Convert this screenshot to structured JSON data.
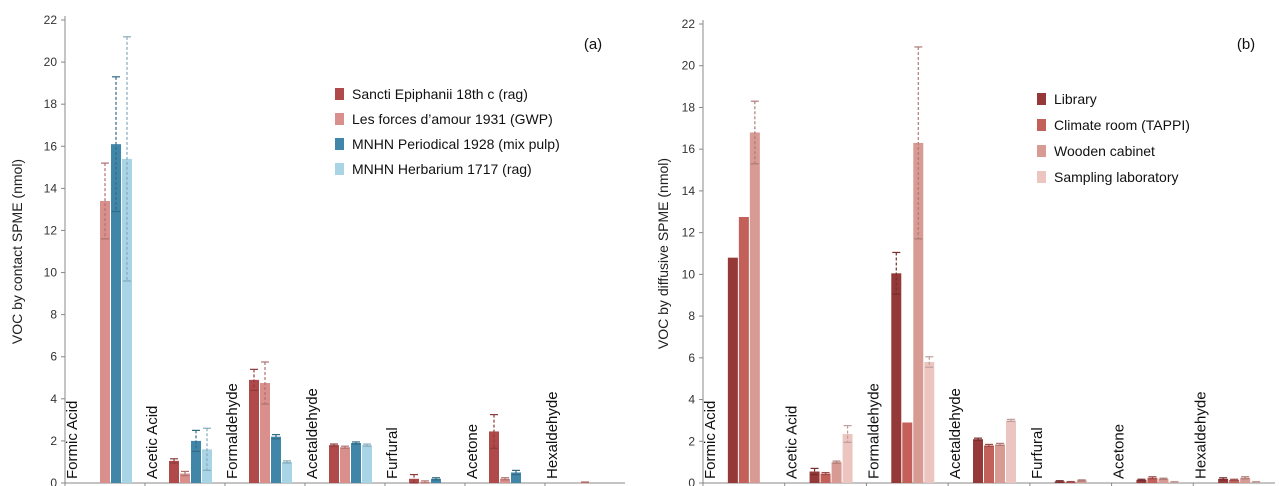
{
  "chart_data": [
    {
      "type": "bar",
      "panel_label": "(a)",
      "ylabel": "VOC by contact SPME (nmol)",
      "ylim": [
        0,
        22
      ],
      "yticks": [
        0,
        2,
        4,
        6,
        8,
        10,
        12,
        14,
        16,
        18,
        20,
        22
      ],
      "categories": [
        "Formic Acid",
        "Acetic Acid",
        "Formaldehyde",
        "Acetaldehyde",
        "Furfural",
        "Acetone",
        "Hexaldehyde"
      ],
      "legend_position": "top-right",
      "series": [
        {
          "name": "Sancti Epiphanii 18th c (rag)",
          "color": "#b04a4a",
          "values": [
            0,
            1.05,
            4.9,
            1.8,
            0.2,
            2.45,
            0.0
          ],
          "errors": [
            0,
            0.1,
            0.5,
            0.05,
            0.2,
            0.8,
            0
          ]
        },
        {
          "name": "Les forces d’amour 1931 (GWP)",
          "color": "#d9908c",
          "values": [
            13.4,
            0.45,
            4.75,
            1.7,
            0.05,
            0.2,
            0.03
          ],
          "errors": [
            1.8,
            0.1,
            1.0,
            0.05,
            0.05,
            0.05,
            0.02
          ]
        },
        {
          "name": "MNHN Periodical 1928 (mix pulp)",
          "color": "#3f86a8",
          "values": [
            16.1,
            2.0,
            2.2,
            1.9,
            0.2,
            0.5,
            0.0
          ],
          "errors": [
            3.2,
            0.5,
            0.1,
            0.05,
            0.05,
            0.1,
            0
          ]
        },
        {
          "name": "MNHN Herbarium 1717 (rag)",
          "color": "#a8d4e6",
          "values": [
            15.4,
            1.6,
            1.0,
            1.8,
            0.0,
            0.0,
            0.0
          ],
          "errors": [
            5.8,
            1.0,
            0.05,
            0.05,
            0,
            0,
            0
          ]
        }
      ]
    },
    {
      "type": "bar",
      "panel_label": "(b)",
      "ylabel": "VOC by diffusive SPME (nmol)",
      "ylim": [
        0,
        22
      ],
      "yticks": [
        0,
        2,
        4,
        6,
        8,
        10,
        12,
        14,
        16,
        18,
        20,
        22
      ],
      "categories": [
        "Formic Acid",
        "Acetic Acid",
        "Formaldehyde",
        "Acetaldehyde",
        "Furfural",
        "Acetone",
        "Hexaldehyde"
      ],
      "legend_position": "top-right",
      "series": [
        {
          "name": "Library",
          "color": "#943838",
          "values": [
            10.8,
            0.55,
            10.05,
            2.1,
            0.08,
            0.15,
            0.2
          ],
          "errors": [
            0,
            0.15,
            1.0,
            0.05,
            0.03,
            0.03,
            0.05
          ]
        },
        {
          "name": "Climate room (TAPPI)",
          "color": "#c4605a",
          "values": [
            12.75,
            0.45,
            2.9,
            1.8,
            0.05,
            0.25,
            0.15
          ],
          "errors": [
            0,
            0.05,
            0,
            0.05,
            0.02,
            0.05,
            0.03
          ]
        },
        {
          "name": "Wooden cabinet",
          "color": "#d89b94",
          "values": [
            16.8,
            1.0,
            16.3,
            1.85,
            0.12,
            0.2,
            0.25
          ],
          "errors": [
            1.5,
            0.05,
            4.6,
            0.05,
            0.03,
            0.03,
            0.05
          ]
        },
        {
          "name": "Sampling laboratory",
          "color": "#ecc5c0",
          "values": [
            0,
            2.35,
            5.8,
            3.0,
            0.0,
            0.05,
            0.05
          ],
          "errors": [
            0,
            0.4,
            0.25,
            0.05,
            0,
            0.02,
            0.02
          ]
        }
      ]
    }
  ]
}
